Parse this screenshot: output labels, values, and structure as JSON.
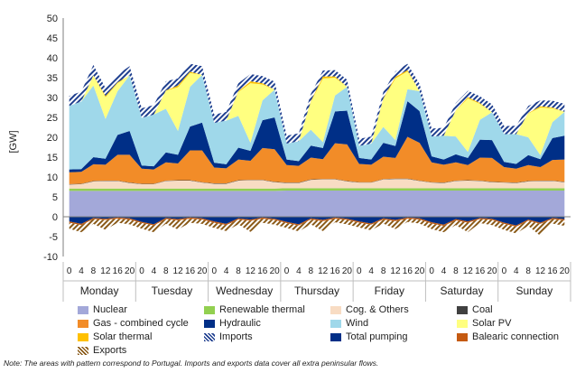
{
  "chart_data": {
    "type": "area",
    "ylabel": "[GW]",
    "ylim": [
      -10,
      50
    ],
    "yticks": [
      -10,
      -5,
      0,
      5,
      10,
      15,
      20,
      25,
      30,
      35,
      40,
      45,
      50
    ],
    "hour_ticks": [
      "0",
      "4",
      "8",
      "12",
      "16",
      "20"
    ],
    "days": [
      "Monday",
      "Tuesday",
      "Wednesday",
      "Thursday",
      "Friday",
      "Saturday",
      "Sunday"
    ],
    "x_note": "Points every 4 hours (0,4,8,12,16,20) for each day, 42 points total; stacked cumulative values in GW",
    "series": [
      {
        "name": "Nuclear",
        "color": "#a3a8d9",
        "values": [
          6.5,
          6.5,
          6.5,
          6.5,
          6.5,
          6.5,
          6.5,
          6.5,
          6.5,
          6.5,
          6.5,
          6.5,
          6.5,
          6.5,
          6.5,
          6.5,
          6.5,
          6.5,
          6.6,
          6.6,
          6.6,
          6.6,
          6.6,
          6.6,
          6.6,
          6.6,
          6.6,
          6.6,
          6.6,
          6.6,
          6.6,
          6.6,
          6.6,
          6.6,
          6.6,
          6.6,
          6.6,
          6.6,
          6.6,
          6.6,
          6.6,
          6.6
        ]
      },
      {
        "name": "Renewable thermal",
        "color": "#92d050",
        "values": [
          0.6,
          0.6,
          0.6,
          0.6,
          0.6,
          0.6,
          0.6,
          0.6,
          0.6,
          0.6,
          0.6,
          0.6,
          0.6,
          0.6,
          0.6,
          0.6,
          0.6,
          0.6,
          0.6,
          0.6,
          0.6,
          0.6,
          0.6,
          0.6,
          0.6,
          0.6,
          0.6,
          0.6,
          0.6,
          0.6,
          0.6,
          0.6,
          0.6,
          0.6,
          0.6,
          0.6,
          0.6,
          0.6,
          0.6,
          0.6,
          0.6,
          0.6
        ]
      },
      {
        "name": "Cog. & Others",
        "color": "#f8dcc3",
        "values": [
          1.0,
          1.1,
          1.8,
          1.9,
          1.9,
          1.4,
          1.1,
          1.1,
          1.9,
          2.0,
          2.0,
          1.5,
          1.2,
          1.2,
          2.0,
          2.1,
          2.1,
          1.6,
          1.3,
          1.3,
          2.1,
          2.2,
          2.2,
          1.7,
          1.4,
          1.4,
          2.2,
          2.3,
          2.3,
          1.8,
          1.4,
          1.3,
          1.8,
          1.9,
          1.8,
          1.5,
          1.4,
          1.3,
          1.7,
          1.8,
          1.8,
          1.5
        ]
      },
      {
        "name": "Coal",
        "color": "#404040",
        "values": [
          0.1,
          0.1,
          0.1,
          0.1,
          0.1,
          0.1,
          0.1,
          0.1,
          0.1,
          0.1,
          0.1,
          0.1,
          0.1,
          0.1,
          0.1,
          0.1,
          0.1,
          0.1,
          0.1,
          0.1,
          0.1,
          0.1,
          0.1,
          0.1,
          0.1,
          0.1,
          0.1,
          0.1,
          0.1,
          0.1,
          0.1,
          0.1,
          0.1,
          0.1,
          0.1,
          0.1,
          0.1,
          0.1,
          0.1,
          0.1,
          0.1,
          0.1
        ]
      },
      {
        "name": "Gas - combined cycle",
        "color": "#f28c28",
        "values": [
          3.0,
          3.0,
          4.2,
          4.0,
          6.5,
          7.0,
          3.8,
          3.6,
          4.6,
          4.2,
          7.5,
          8.0,
          4.0,
          3.8,
          5.2,
          4.8,
          8.0,
          8.2,
          4.4,
          4.2,
          5.5,
          5.0,
          9.0,
          9.2,
          4.6,
          4.4,
          5.6,
          5.2,
          10.5,
          9.5,
          5.0,
          4.5,
          4.6,
          3.8,
          5.8,
          6.0,
          3.8,
          3.5,
          4.0,
          3.4,
          5.2,
          5.6
        ]
      },
      {
        "name": "Hydraulic",
        "color": "#002f87",
        "values": [
          0.7,
          0.7,
          1.8,
          1.5,
          5.0,
          6.0,
          0.8,
          0.8,
          2.5,
          2.2,
          6.0,
          7.0,
          1.2,
          1.0,
          3.0,
          2.5,
          7.0,
          8.0,
          1.4,
          1.2,
          3.0,
          2.8,
          8.0,
          8.5,
          1.5,
          1.3,
          3.5,
          3.0,
          9.0,
          8.0,
          1.5,
          1.3,
          2.0,
          1.8,
          4.5,
          4.5,
          1.3,
          1.2,
          2.5,
          2.0,
          5.5,
          6.0
        ]
      },
      {
        "name": "Wind",
        "color": "#9fd8ea",
        "values": [
          16.0,
          17.0,
          18.0,
          10.0,
          11.0,
          14.0,
          12.0,
          13.0,
          11.0,
          6.0,
          10.0,
          12.0,
          10.0,
          11.0,
          8.0,
          2.0,
          5.0,
          7.0,
          4.0,
          5.0,
          4.0,
          1.5,
          4.0,
          6.0,
          3.0,
          4.0,
          4.0,
          1.5,
          3.0,
          5.0,
          5.0,
          6.0,
          4.5,
          1.5,
          5.0,
          7.0,
          7.0,
          7.5,
          4.5,
          1.0,
          4.0,
          6.0
        ]
      },
      {
        "name": "Solar PV",
        "color": "#ffff80",
        "values": [
          0,
          0,
          2.5,
          5.5,
          2.0,
          0,
          0,
          0,
          4.5,
          11.0,
          3.5,
          0,
          0,
          0,
          6.0,
          15.0,
          4.0,
          0,
          0,
          0,
          7.0,
          16.0,
          4.5,
          0,
          0,
          0,
          7.0,
          15.5,
          4.5,
          0,
          0,
          0,
          6.5,
          13.5,
          4.0,
          0,
          0,
          0,
          6.0,
          12.0,
          3.5,
          0
        ]
      },
      {
        "name": "Solar thermal",
        "color": "#ffc000",
        "values": [
          0,
          0,
          0.1,
          0.3,
          0.2,
          0,
          0,
          0,
          0.1,
          0.4,
          0.3,
          0,
          0,
          0,
          0.2,
          0.5,
          0.3,
          0,
          0,
          0,
          0.2,
          0.5,
          0.3,
          0,
          0,
          0,
          0.2,
          0.4,
          0.3,
          0,
          0,
          0,
          0.1,
          0.3,
          0.2,
          0,
          0,
          0,
          0.1,
          0.3,
          0.2,
          0
        ]
      },
      {
        "name": "Imports",
        "color": "#1f3f8f",
        "hatch": true,
        "values": [
          2.5,
          2.5,
          2.6,
          2.0,
          2.0,
          2.3,
          2.4,
          2.4,
          2.3,
          1.8,
          2.0,
          2.2,
          2.1,
          2.2,
          2.0,
          1.8,
          1.8,
          2.0,
          2.0,
          2.0,
          1.8,
          1.5,
          1.6,
          1.8,
          1.8,
          1.8,
          1.6,
          1.4,
          1.6,
          1.8,
          2.0,
          2.0,
          1.8,
          1.6,
          1.7,
          2.0,
          2.0,
          2.1,
          1.8,
          1.5,
          1.7,
          2.0
        ]
      },
      {
        "name": "Total pumping",
        "color": "#002f87",
        "values": [
          -1.2,
          -1.8,
          -0.3,
          -0.5,
          -0.2,
          -0.4,
          -1.3,
          -1.9,
          -0.3,
          -0.6,
          -0.2,
          -0.4,
          -1.2,
          -1.8,
          -0.4,
          -0.7,
          -0.2,
          -0.5,
          -1.3,
          -1.9,
          -0.4,
          -0.8,
          -0.2,
          -0.5,
          -1.2,
          -1.7,
          -0.4,
          -0.8,
          -0.2,
          -0.4,
          -1.4,
          -2.0,
          -0.6,
          -1.2,
          -0.3,
          -0.5,
          -1.5,
          -2.2,
          -0.7,
          -1.5,
          -0.3,
          -0.6
        ]
      },
      {
        "name": "Balearic connection",
        "color": "#c55a11",
        "values": [
          -0.3,
          -0.3,
          -0.3,
          -0.3,
          -0.3,
          -0.3,
          -0.3,
          -0.3,
          -0.3,
          -0.3,
          -0.3,
          -0.3,
          -0.3,
          -0.3,
          -0.3,
          -0.3,
          -0.3,
          -0.3,
          -0.3,
          -0.3,
          -0.3,
          -0.3,
          -0.3,
          -0.3,
          -0.3,
          -0.3,
          -0.3,
          -0.3,
          -0.3,
          -0.3,
          -0.3,
          -0.3,
          -0.3,
          -0.3,
          -0.3,
          -0.3,
          -0.3,
          -0.3,
          -0.3,
          -0.3,
          -0.3,
          -0.3
        ]
      },
      {
        "name": "Exports",
        "color": "#8a5a18",
        "hatch": true,
        "values": [
          -1.5,
          -1.8,
          -1.2,
          -2.5,
          -1.0,
          -1.2,
          -1.4,
          -1.7,
          -1.2,
          -2.3,
          -1.0,
          -1.1,
          -1.3,
          -1.5,
          -1.2,
          -2.8,
          -1.0,
          -1.2,
          -1.2,
          -1.5,
          -1.2,
          -2.5,
          -0.9,
          -1.1,
          -1.2,
          -1.4,
          -1.0,
          -2.0,
          -0.8,
          -1.0,
          -1.4,
          -1.6,
          -1.2,
          -2.4,
          -1.0,
          -1.3,
          -1.5,
          -1.7,
          -1.3,
          -3.0,
          -1.1,
          -1.4
        ]
      }
    ],
    "grid": false,
    "legend_placement": "bottom"
  },
  "legend": [
    {
      "label": "Nuclear",
      "color": "#a3a8d9",
      "pattern": "solid"
    },
    {
      "label": "Renewable thermal",
      "color": "#92d050",
      "pattern": "solid"
    },
    {
      "label": "Cog. & Others",
      "color": "#f8dcc3",
      "pattern": "solid"
    },
    {
      "label": "Coal",
      "color": "#404040",
      "pattern": "solid"
    },
    {
      "label": "Gas - combined cycle",
      "color": "#f28c28",
      "pattern": "solid"
    },
    {
      "label": "Hydraulic",
      "color": "#002f87",
      "pattern": "solid"
    },
    {
      "label": "Wind",
      "color": "#9fd8ea",
      "pattern": "solid"
    },
    {
      "label": "Solar PV",
      "color": "#ffff80",
      "pattern": "solid"
    },
    {
      "label": "Solar thermal",
      "color": "#ffc000",
      "pattern": "solid"
    },
    {
      "label": "Imports",
      "color": "#1f3f8f",
      "pattern": "hatch"
    },
    {
      "label": "Total pumping",
      "color": "#002f87",
      "pattern": "solid"
    },
    {
      "label": "Balearic connection",
      "color": "#c55a11",
      "pattern": "solid"
    },
    {
      "label": "Exports",
      "color": "#8a5a18",
      "pattern": "hatch"
    }
  ],
  "note": "Note: The areas with pattern correspond to Portugal. Imports and exports data cover all extra peninsular flows."
}
